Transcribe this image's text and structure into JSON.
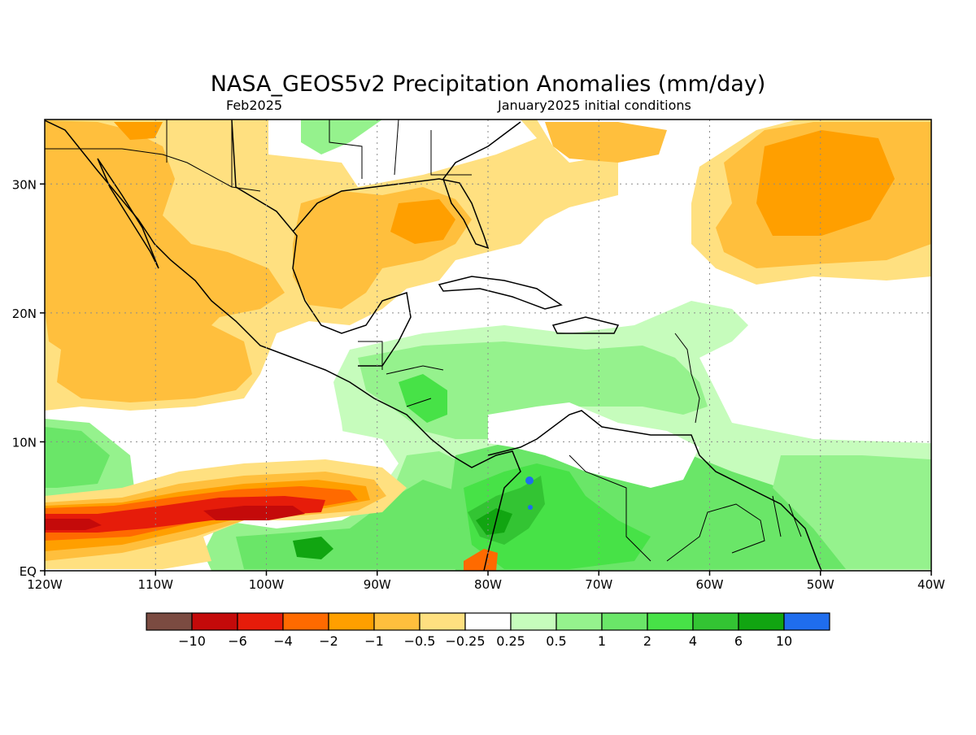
{
  "title": "NASA_GEOS5v2 Precipitation Anomalies (mm/day)",
  "subtitle_left": "Feb2025",
  "subtitle_right": "January2025 initial conditions",
  "map": {
    "lon_range": [
      -120,
      -40
    ],
    "lat_range": [
      0,
      35
    ],
    "x_ticks": [
      {
        "value": -120,
        "label": "120W"
      },
      {
        "value": -110,
        "label": "110W"
      },
      {
        "value": -100,
        "label": "100W"
      },
      {
        "value": -90,
        "label": "90W"
      },
      {
        "value": -80,
        "label": "80W"
      },
      {
        "value": -70,
        "label": "70W"
      },
      {
        "value": -60,
        "label": "60W"
      },
      {
        "value": -50,
        "label": "50W"
      },
      {
        "value": -40,
        "label": "40W"
      }
    ],
    "y_ticks": [
      {
        "value": 0,
        "label": "EQ"
      },
      {
        "value": 10,
        "label": "10N"
      },
      {
        "value": 20,
        "label": "20N"
      },
      {
        "value": 30,
        "label": "30N"
      }
    ],
    "grid": "dotted"
  },
  "colorbar": {
    "colors": [
      "#7b4b41",
      "#c40a0a",
      "#e61c0a",
      "#ff6a00",
      "#ff9f00",
      "#ffbf3d",
      "#ffe080",
      "#ffffff",
      "#c6fcbc",
      "#95f28d",
      "#6ae668",
      "#47e247",
      "#33c433",
      "#11a511",
      "#1f6ded"
    ],
    "labels": [
      "-10",
      "-6",
      "-4",
      "-2",
      "-1",
      "-0.5",
      "-0.25",
      "0.25",
      "0.5",
      "1",
      "2",
      "4",
      "6",
      "10"
    ]
  },
  "colors": {
    "dry_light": "#ffe080",
    "dry_medium": "#ffbf3d",
    "dry_strong": "#ff9f00",
    "dry_orange": "#ff6a00",
    "dry_red": "#e61c0a",
    "dry_darkred": "#c40a0a",
    "wet_light": "#c6fcbc",
    "wet_medium": "#95f28d",
    "wet_2": "#6ae668",
    "wet_4": "#47e247",
    "wet_6": "#33c433",
    "wet_10": "#11a511",
    "wet_max": "#1f6ded"
  }
}
